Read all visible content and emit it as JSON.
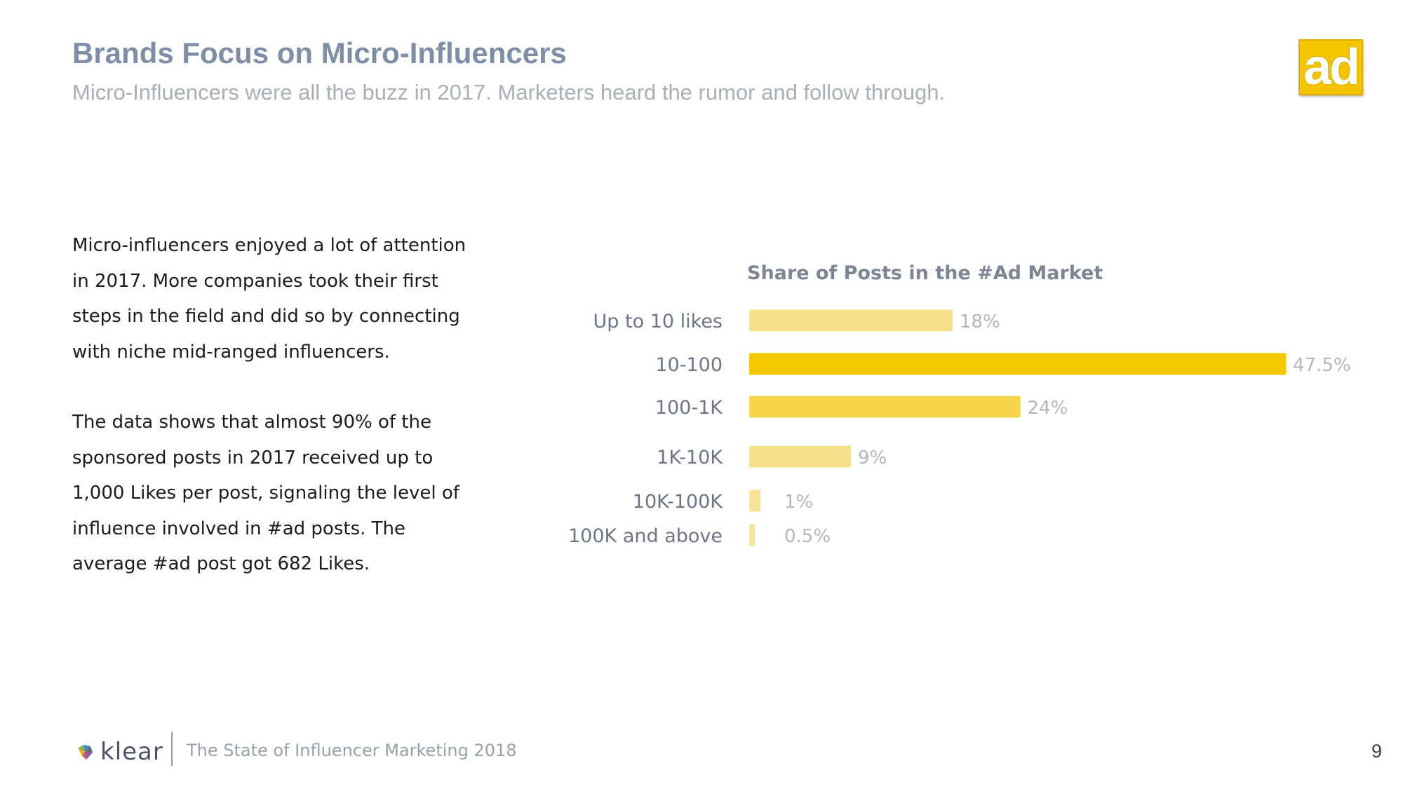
{
  "header": {
    "title": "Brands Focus on Micro-Influencers",
    "subtitle": "Micro-Influencers were all the buzz in 2017. Marketers heard the rumor and follow through.",
    "logo_text": "ad"
  },
  "body": {
    "paragraph1": "Micro-influencers enjoyed a lot of attention in 2017. More companies took their first steps in the field and did so by connecting with niche mid-ranged influencers.",
    "paragraph2": "The data shows that almost 90% of the sponsored posts in 2017 received up to 1,000 Likes per post, signaling the level of influence involved in #ad posts. The average #ad post got 682 Likes."
  },
  "chart_data": {
    "type": "bar",
    "orientation": "horizontal",
    "title": "Share of Posts in the #Ad Market",
    "categories": [
      "Up to 10 likes",
      "10-100",
      "100-1K",
      "1K-10K",
      "10K-100K",
      "100K and above"
    ],
    "values": [
      18,
      47.5,
      24,
      9,
      1,
      0.5
    ],
    "value_labels": [
      "18%",
      "47.5%",
      "24%",
      "9%",
      "1%",
      "0.5%"
    ],
    "unit": "%",
    "xlim": [
      0,
      47.5
    ],
    "colors": [
      "#f6e08a",
      "#f5c800",
      "#f6d648",
      "#f6e08a",
      "#f6e397",
      "#f6e397"
    ],
    "label_color": "#6b7585",
    "value_label_color": "#b3b6bb"
  },
  "footer": {
    "brand": "klear",
    "report": "The State of Influencer Marketing 2018",
    "page_number": "9"
  }
}
